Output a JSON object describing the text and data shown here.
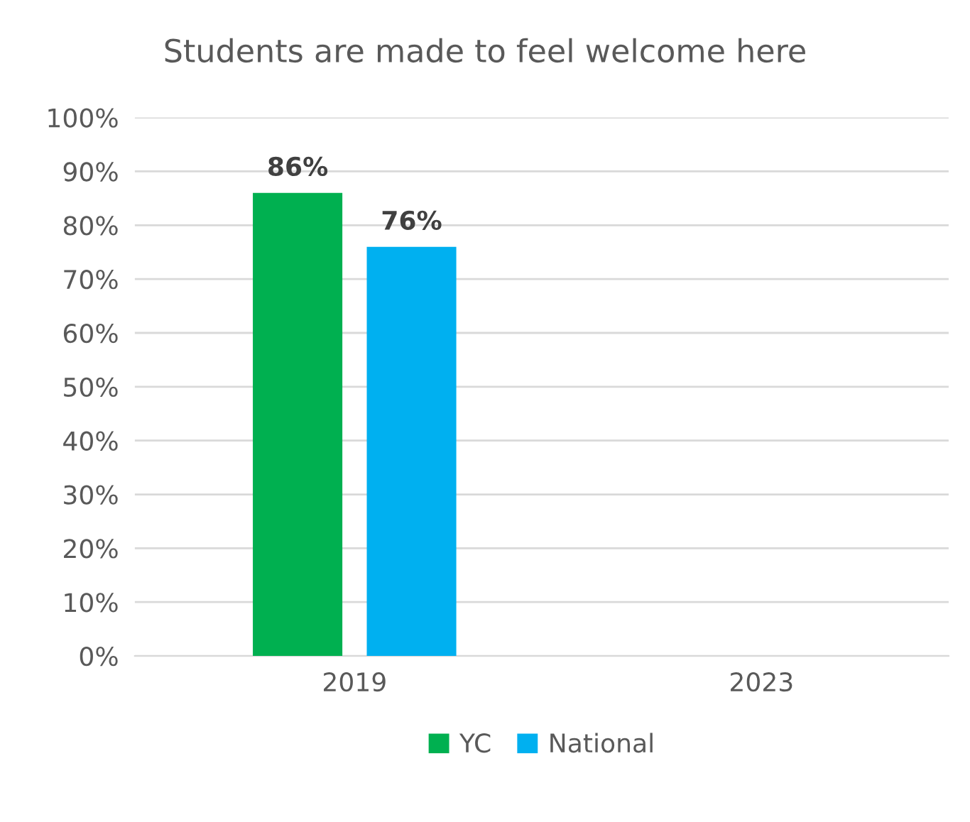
{
  "chart_data": {
    "type": "bar",
    "title": "Students are made to feel welcome here",
    "categories": [
      "2019",
      "2023"
    ],
    "series": [
      {
        "name": "YC",
        "color": "#00b050",
        "values": [
          86,
          null
        ],
        "value_labels": [
          "86%",
          null
        ]
      },
      {
        "name": "National",
        "color": "#00b0f0",
        "values": [
          76,
          null
        ],
        "value_labels": [
          "76%",
          null
        ]
      }
    ],
    "ylim": [
      0,
      100
    ],
    "yticks": [
      {
        "value": 0,
        "label": "0%"
      },
      {
        "value": 10,
        "label": "10%"
      },
      {
        "value": 20,
        "label": "20%"
      },
      {
        "value": 30,
        "label": "30%"
      },
      {
        "value": 40,
        "label": "40%"
      },
      {
        "value": 50,
        "label": "50%"
      },
      {
        "value": 60,
        "label": "60%"
      },
      {
        "value": 70,
        "label": "70%"
      },
      {
        "value": 80,
        "label": "80%"
      },
      {
        "value": 90,
        "label": "90%"
      },
      {
        "value": 100,
        "label": "100%"
      }
    ],
    "grid": "y",
    "legend": "bottom"
  }
}
